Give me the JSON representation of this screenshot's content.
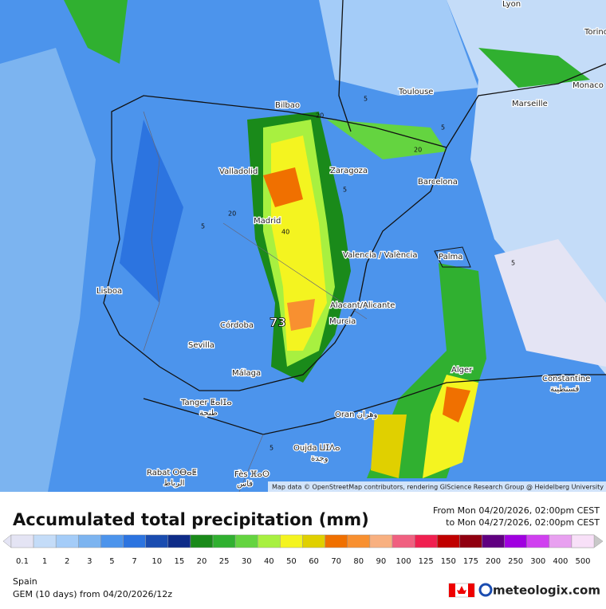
{
  "map": {
    "cities": [
      "Lyon",
      "Torino",
      "Monaco",
      "Marseille",
      "Toulouse",
      "Bilbao",
      "Valladolid",
      "Zaragoza",
      "Barcelona",
      "Madrid",
      "Valencia / València",
      "Palma",
      "Lisboa",
      "Alacant/Alicante",
      "Murcia",
      "Córdoba",
      "Sevilla",
      "Málaga",
      "Alger",
      "Constantine",
      "قسنطينة",
      "Tanger ⵟⴰⵏⵊⴰ",
      "طنجة",
      "Oran وهران",
      "Oujda ⵡⵊⴷⴰ",
      "وجدة",
      "Rabat ⵔⴱⴰⵟ",
      "الرباط",
      "Fès ⴼⴰⵙ",
      "فاس"
    ],
    "contour_labels": [
      "20",
      "5",
      "20",
      "5",
      "5",
      "20",
      "40",
      "5",
      "5",
      "5"
    ],
    "max_label": "73",
    "attribution": "Map data © OpenStreetMap contributors, rendering GIScience Research Group @ Heidelberg University"
  },
  "title": "Accumulated total precipitation (mm)",
  "date_range": {
    "from": "From Mon 04/20/2026, 02:00pm CEST",
    "to": "to Mon 04/27/2026, 02:00pm CEST"
  },
  "legend": {
    "labels": [
      0.1,
      1,
      2,
      3,
      5,
      7,
      10,
      15,
      20,
      25,
      30,
      40,
      50,
      60,
      70,
      80,
      90,
      100,
      125,
      150,
      175,
      200,
      250,
      300,
      400,
      500
    ],
    "colors": [
      "#e4e4f4",
      "#c4dcf8",
      "#a4ccf8",
      "#7cb4f0",
      "#4c94ec",
      "#2c74e0",
      "#1a4cb0",
      "#0e2c88",
      "#1a8a1a",
      "#30b030",
      "#64d440",
      "#a8f040",
      "#f4f420",
      "#e0d000",
      "#f07000",
      "#f89030",
      "#f8b080",
      "#f06080",
      "#f02050",
      "#c00000",
      "#900010",
      "#600080",
      "#a000e0",
      "#d040f0",
      "#e8a0f0",
      "#f8e0f8"
    ]
  },
  "footer": {
    "region": "Spain",
    "model": "GEM (10 days) from 04/20/2026/12z",
    "brand": "meteologix.com"
  }
}
